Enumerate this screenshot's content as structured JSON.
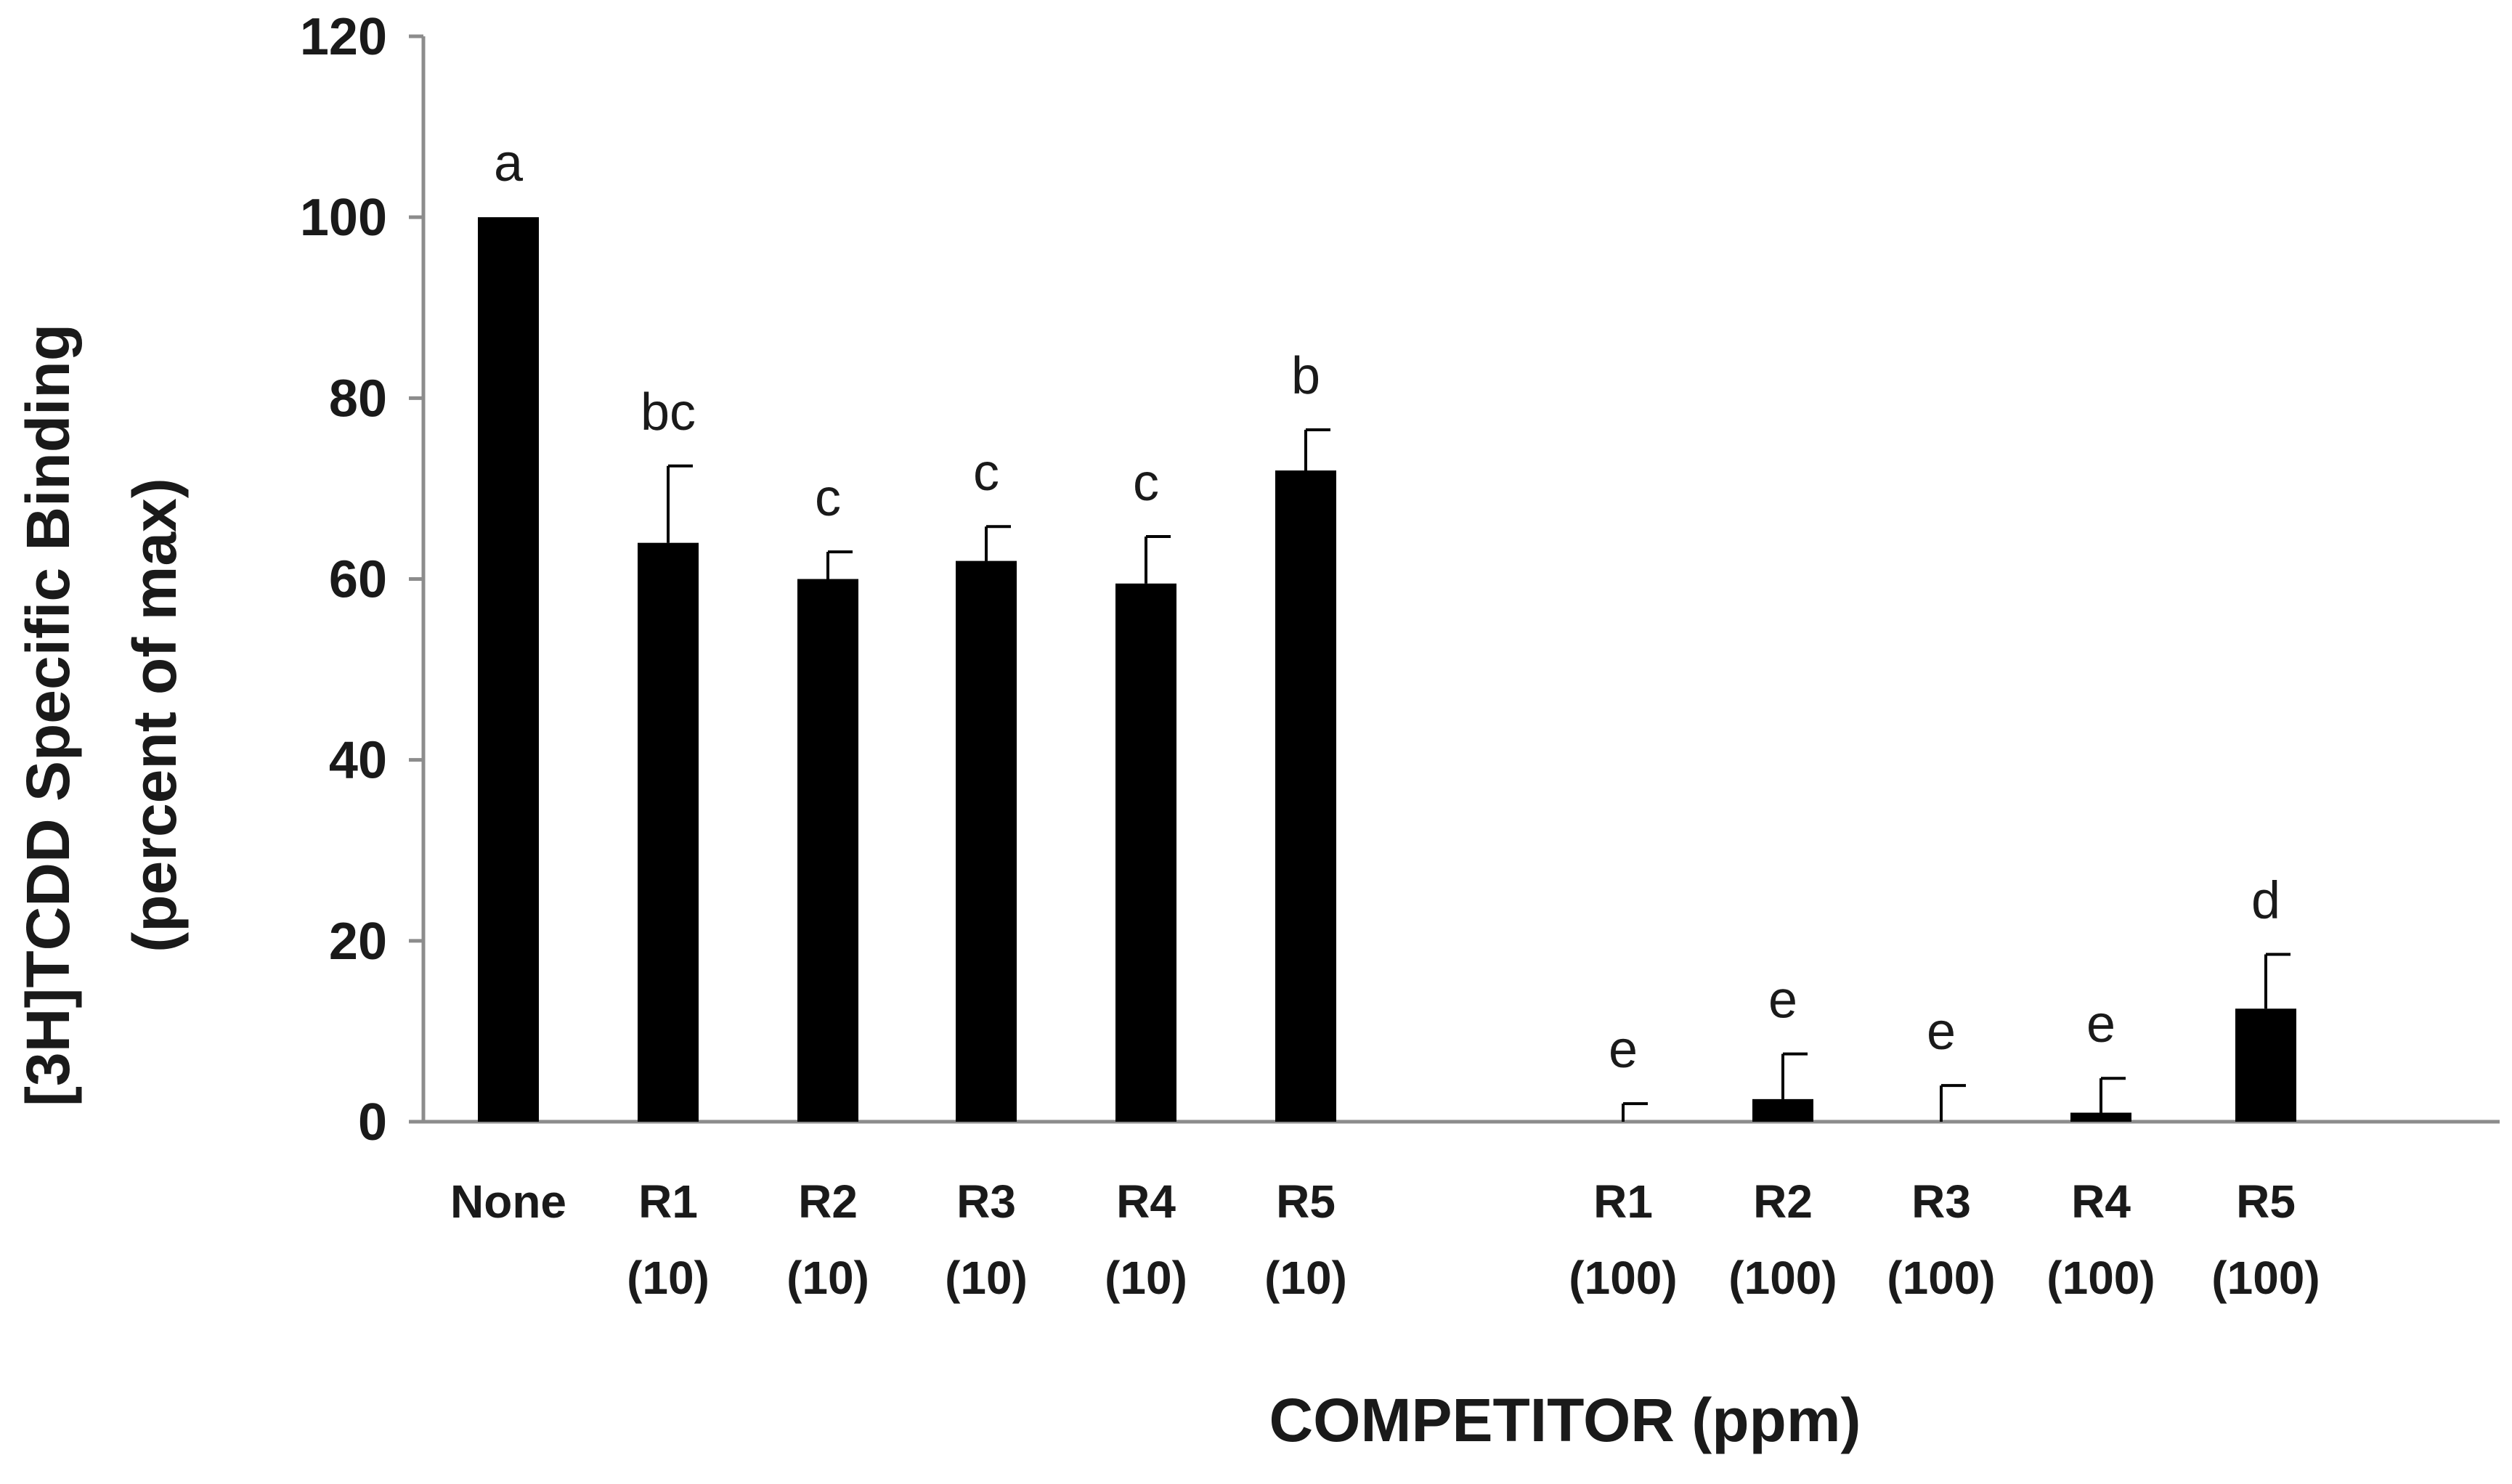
{
  "chart_data": {
    "type": "bar",
    "xlabel": "COMPETITOR (ppm)",
    "ylabel_line1": "[3H]TCDD Specific Binding",
    "ylabel_line2": "(percent of max)",
    "ylim": [
      0,
      120
    ],
    "yticks": [
      "0",
      "20",
      "40",
      "60",
      "80",
      "100",
      "120"
    ],
    "grid": false,
    "legend": "none",
    "bar_color": "#000000",
    "axis_color": "#8c8c8c",
    "categories": [
      {
        "line1": "None",
        "line2": ""
      },
      {
        "line1": "R1",
        "line2": "(10)"
      },
      {
        "line1": "R2",
        "line2": "(10)"
      },
      {
        "line1": "R3",
        "line2": "(10)"
      },
      {
        "line1": "R4",
        "line2": "(10)"
      },
      {
        "line1": "R5",
        "line2": "(10)"
      },
      {
        "line1": "R1",
        "line2": "(100)"
      },
      {
        "line1": "R2",
        "line2": "(100)"
      },
      {
        "line1": "R3",
        "line2": "(100)"
      },
      {
        "line1": "R4",
        "line2": "(100)"
      },
      {
        "line1": "R5",
        "line2": "(100)"
      }
    ],
    "values": [
      100,
      64,
      60,
      62,
      59.5,
      72,
      0,
      2.5,
      0,
      1,
      12.5
    ],
    "errors": [
      0,
      8.5,
      3,
      3.8,
      5.2,
      4.5,
      2,
      5,
      4,
      3.8,
      6
    ],
    "significance": [
      "a",
      "bc",
      "c",
      "c",
      "c",
      "b",
      "e",
      "e",
      "e",
      "e",
      "d"
    ]
  }
}
